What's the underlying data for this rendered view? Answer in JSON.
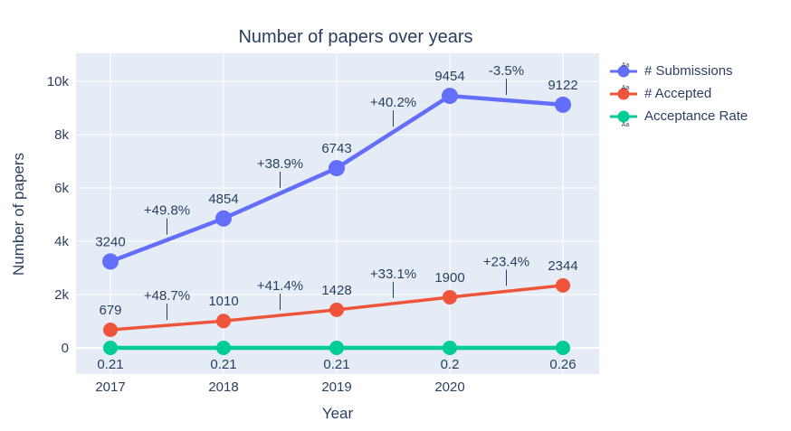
{
  "colors": {
    "plot_bg": "#E5ECF6",
    "grid": "#FFFFFF",
    "text": "#2a3f5f",
    "annotation_line": "#2a3f5f"
  },
  "legend_sample_text": "Aa",
  "chart_data": {
    "type": "line",
    "title": "Number of papers over years",
    "xlabel": "Year",
    "ylabel": "Number of papers",
    "x": [
      2017,
      2018,
      2019,
      2020,
      2021
    ],
    "x_tick_labels": [
      "2017",
      "2018",
      "2019",
      "2020"
    ],
    "y_ticks": [
      0,
      2000,
      4000,
      6000,
      8000,
      10000
    ],
    "y_tick_labels": [
      "0",
      "2k",
      "4k",
      "6k",
      "8k",
      "10k"
    ],
    "ylim": [
      -1000,
      11000
    ],
    "grid": true,
    "legend_position": "top-right",
    "series": [
      {
        "name": "# Submissions",
        "color": "#636EFA",
        "values": [
          3240,
          4854,
          6743,
          9454,
          9122
        ],
        "point_labels": [
          "3240",
          "4854",
          "6743",
          "9454",
          "9122"
        ],
        "change_labels": [
          "+49.8%",
          "+38.9%",
          "+40.2%",
          "-3.5%"
        ]
      },
      {
        "name": "# Accepted",
        "color": "#EF553B",
        "values": [
          679,
          1010,
          1428,
          1900,
          2344
        ],
        "point_labels": [
          "679",
          "1010",
          "1428",
          "1900",
          "2344"
        ],
        "change_labels": [
          "+48.7%",
          "+41.4%",
          "+33.1%",
          "+23.4%"
        ]
      },
      {
        "name": "Acceptance Rate",
        "color": "#00CC96",
        "values": [
          0.21,
          0.21,
          0.21,
          0.2,
          0.26
        ],
        "point_labels": [
          "0.21",
          "0.21",
          "0.21",
          "0.2",
          "0.26"
        ],
        "plot_on_baseline": true,
        "labels_below": true
      }
    ]
  }
}
